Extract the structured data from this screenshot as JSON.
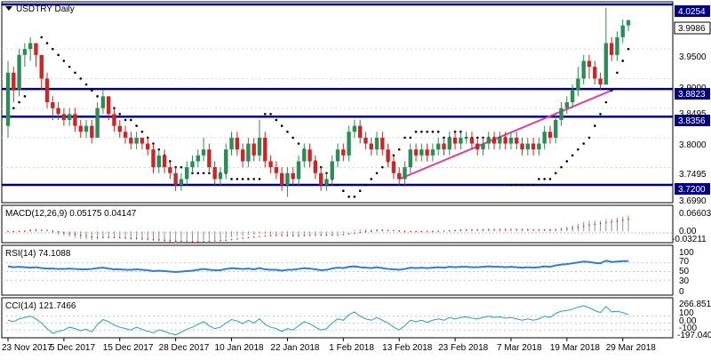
{
  "chart_data": [
    {
      "type": "candlestick",
      "title": "USDTRY Daily",
      "pane": "main",
      "ylim": [
        3.69,
        4.03
      ],
      "price_ticks": [
        "3.9500",
        "3.9000",
        "3.8495",
        "3.8000",
        "3.7495",
        "3.6990"
      ],
      "horizontal_levels": [
        {
          "label": "4.0254",
          "value": 4.0254
        },
        {
          "label": "3.8823",
          "value": 3.8823
        },
        {
          "label": "3.8356",
          "value": 3.8356
        },
        {
          "label": "3.7200",
          "value": 3.72
        }
      ],
      "last_price": {
        "label": "3.9986",
        "value": 3.9986
      },
      "trendline": {
        "from": {
          "index": 70,
          "value": 3.73
        },
        "to": {
          "index": 108,
          "value": 3.88
        },
        "color": "#e040a0"
      },
      "colors": {
        "up": "#2e8b57",
        "down": "#c62828",
        "level_line": "#000080",
        "parabolic_sar": "#000000"
      },
      "candles": [
        [
          3.82,
          3.91,
          3.93,
          3.8
        ],
        [
          3.91,
          3.88,
          3.92,
          3.86
        ],
        [
          3.88,
          3.94,
          3.95,
          3.87
        ],
        [
          3.94,
          3.95,
          3.96,
          3.92
        ],
        [
          3.95,
          3.96,
          3.97,
          3.93
        ],
        [
          3.96,
          3.94,
          3.96,
          3.92
        ],
        [
          3.94,
          3.9,
          3.94,
          3.88
        ],
        [
          3.9,
          3.86,
          3.91,
          3.85
        ],
        [
          3.86,
          3.85,
          3.87,
          3.83
        ],
        [
          3.85,
          3.84,
          3.86,
          3.83
        ],
        [
          3.84,
          3.83,
          3.85,
          3.82
        ],
        [
          3.83,
          3.84,
          3.85,
          3.82
        ],
        [
          3.84,
          3.82,
          3.85,
          3.81
        ],
        [
          3.82,
          3.81,
          3.83,
          3.8
        ],
        [
          3.81,
          3.82,
          3.83,
          3.8
        ],
        [
          3.82,
          3.8,
          3.83,
          3.79
        ],
        [
          3.8,
          3.85,
          3.86,
          3.8
        ],
        [
          3.85,
          3.87,
          3.88,
          3.84
        ],
        [
          3.87,
          3.84,
          3.87,
          3.83
        ],
        [
          3.84,
          3.82,
          3.85,
          3.81
        ],
        [
          3.82,
          3.81,
          3.83,
          3.8
        ],
        [
          3.81,
          3.8,
          3.82,
          3.79
        ],
        [
          3.8,
          3.79,
          3.81,
          3.78
        ],
        [
          3.79,
          3.8,
          3.81,
          3.78
        ],
        [
          3.8,
          3.79,
          3.8,
          3.78
        ],
        [
          3.79,
          3.78,
          3.8,
          3.77
        ],
        [
          3.78,
          3.75,
          3.79,
          3.74
        ],
        [
          3.75,
          3.77,
          3.78,
          3.74
        ],
        [
          3.77,
          3.75,
          3.78,
          3.74
        ],
        [
          3.75,
          3.74,
          3.76,
          3.73
        ],
        [
          3.74,
          3.72,
          3.75,
          3.71
        ],
        [
          3.72,
          3.73,
          3.74,
          3.71
        ],
        [
          3.73,
          3.75,
          3.76,
          3.72
        ],
        [
          3.75,
          3.76,
          3.77,
          3.74
        ],
        [
          3.76,
          3.77,
          3.78,
          3.75
        ],
        [
          3.77,
          3.78,
          3.8,
          3.76
        ],
        [
          3.78,
          3.75,
          3.79,
          3.74
        ],
        [
          3.75,
          3.73,
          3.76,
          3.72
        ],
        [
          3.73,
          3.74,
          3.75,
          3.72
        ],
        [
          3.74,
          3.78,
          3.79,
          3.73
        ],
        [
          3.78,
          3.8,
          3.81,
          3.77
        ],
        [
          3.8,
          3.78,
          3.81,
          3.77
        ],
        [
          3.78,
          3.76,
          3.79,
          3.75
        ],
        [
          3.76,
          3.79,
          3.8,
          3.75
        ],
        [
          3.79,
          3.77,
          3.8,
          3.76
        ],
        [
          3.77,
          3.8,
          3.83,
          3.76
        ],
        [
          3.8,
          3.76,
          3.81,
          3.75
        ],
        [
          3.76,
          3.75,
          3.77,
          3.74
        ],
        [
          3.75,
          3.74,
          3.76,
          3.73
        ],
        [
          3.74,
          3.72,
          3.75,
          3.71
        ],
        [
          3.72,
          3.74,
          3.75,
          3.7
        ],
        [
          3.74,
          3.73,
          3.75,
          3.72
        ],
        [
          3.73,
          3.76,
          3.77,
          3.72
        ],
        [
          3.76,
          3.78,
          3.79,
          3.75
        ],
        [
          3.78,
          3.76,
          3.79,
          3.75
        ],
        [
          3.76,
          3.74,
          3.77,
          3.73
        ],
        [
          3.74,
          3.72,
          3.75,
          3.71
        ],
        [
          3.72,
          3.73,
          3.74,
          3.71
        ],
        [
          3.73,
          3.76,
          3.77,
          3.72
        ],
        [
          3.76,
          3.78,
          3.79,
          3.75
        ],
        [
          3.78,
          3.77,
          3.79,
          3.76
        ],
        [
          3.77,
          3.81,
          3.82,
          3.76
        ],
        [
          3.81,
          3.82,
          3.83,
          3.8
        ],
        [
          3.82,
          3.8,
          3.83,
          3.79
        ],
        [
          3.8,
          3.79,
          3.81,
          3.78
        ],
        [
          3.79,
          3.78,
          3.8,
          3.77
        ],
        [
          3.78,
          3.8,
          3.81,
          3.77
        ],
        [
          3.8,
          3.78,
          3.81,
          3.77
        ],
        [
          3.78,
          3.76,
          3.79,
          3.75
        ],
        [
          3.76,
          3.74,
          3.77,
          3.73
        ],
        [
          3.74,
          3.73,
          3.75,
          3.72
        ],
        [
          3.73,
          3.75,
          3.76,
          3.72
        ],
        [
          3.75,
          3.78,
          3.79,
          3.74
        ],
        [
          3.78,
          3.77,
          3.79,
          3.76
        ],
        [
          3.77,
          3.78,
          3.79,
          3.76
        ],
        [
          3.78,
          3.77,
          3.79,
          3.76
        ],
        [
          3.77,
          3.78,
          3.79,
          3.76
        ],
        [
          3.78,
          3.79,
          3.8,
          3.77
        ],
        [
          3.79,
          3.78,
          3.8,
          3.77
        ],
        [
          3.78,
          3.8,
          3.81,
          3.77
        ],
        [
          3.8,
          3.79,
          3.81,
          3.78
        ],
        [
          3.79,
          3.8,
          3.81,
          3.78
        ],
        [
          3.8,
          3.8,
          3.81,
          3.79
        ],
        [
          3.8,
          3.79,
          3.81,
          3.78
        ],
        [
          3.79,
          3.78,
          3.8,
          3.77
        ],
        [
          3.78,
          3.79,
          3.8,
          3.77
        ],
        [
          3.79,
          3.8,
          3.81,
          3.78
        ],
        [
          3.8,
          3.79,
          3.81,
          3.78
        ],
        [
          3.79,
          3.8,
          3.81,
          3.78
        ],
        [
          3.8,
          3.79,
          3.81,
          3.78
        ],
        [
          3.79,
          3.8,
          3.81,
          3.78
        ],
        [
          3.8,
          3.79,
          3.81,
          3.78
        ],
        [
          3.79,
          3.78,
          3.8,
          3.77
        ],
        [
          3.78,
          3.79,
          3.8,
          3.77
        ],
        [
          3.79,
          3.78,
          3.8,
          3.77
        ],
        [
          3.78,
          3.79,
          3.8,
          3.77
        ],
        [
          3.79,
          3.81,
          3.82,
          3.78
        ],
        [
          3.81,
          3.8,
          3.82,
          3.79
        ],
        [
          3.8,
          3.83,
          3.84,
          3.79
        ],
        [
          3.83,
          3.85,
          3.86,
          3.82
        ],
        [
          3.85,
          3.86,
          3.87,
          3.84
        ],
        [
          3.86,
          3.88,
          3.89,
          3.85
        ],
        [
          3.88,
          3.9,
          3.92,
          3.87
        ],
        [
          3.9,
          3.93,
          3.94,
          3.89
        ],
        [
          3.93,
          3.92,
          3.94,
          3.9
        ],
        [
          3.92,
          3.9,
          3.93,
          3.89
        ],
        [
          3.9,
          3.89,
          3.91,
          3.88
        ],
        [
          3.89,
          3.96,
          4.02,
          3.89
        ],
        [
          3.96,
          3.94,
          3.97,
          3.93
        ],
        [
          3.94,
          3.97,
          3.98,
          3.93
        ],
        [
          3.97,
          3.99,
          4.0,
          3.96
        ],
        [
          3.99,
          3.9986,
          4.0,
          3.98
        ]
      ],
      "parabolic_sar": [
        3.84,
        3.85,
        3.86,
        3.87,
        null,
        null,
        3.97,
        3.96,
        3.95,
        3.94,
        3.93,
        3.92,
        3.91,
        3.9,
        3.89,
        3.88,
        3.87,
        3.86,
        3.86,
        3.85,
        3.84,
        3.83,
        3.83,
        3.82,
        3.81,
        3.8,
        3.79,
        3.78,
        3.77,
        3.76,
        3.75,
        3.75,
        3.74,
        3.74,
        3.74,
        3.74,
        3.74,
        3.74,
        3.74,
        3.74,
        3.73,
        3.73,
        3.73,
        3.73,
        3.73,
        3.73,
        3.84,
        3.84,
        3.83,
        3.82,
        3.81,
        3.8,
        3.79,
        3.78,
        3.77,
        3.76,
        3.75,
        3.74,
        3.73,
        3.72,
        3.71,
        3.7,
        3.7,
        3.71,
        3.72,
        3.73,
        3.74,
        3.75,
        3.76,
        3.77,
        3.78,
        3.8,
        3.8,
        3.81,
        3.81,
        3.81,
        3.81,
        3.81,
        3.8,
        3.8,
        3.81,
        3.81,
        3.8,
        3.8,
        3.8,
        3.8,
        3.8,
        3.8,
        3.8,
        3.8,
        3.72,
        3.72,
        3.72,
        3.72,
        3.72,
        3.73,
        3.73,
        3.73,
        3.74,
        3.75,
        3.76,
        3.77,
        3.78,
        3.79,
        3.8,
        3.82,
        3.84,
        3.86,
        3.88,
        3.91,
        3.93,
        3.95
      ]
    },
    {
      "type": "histogram",
      "pane": "macd",
      "title": "MACD(12,26,9) 0.05175 0.04147",
      "ylim": [
        -0.032,
        0.066
      ],
      "tick_labels": [
        "0.06603",
        "0.00",
        "-0.03211"
      ]
    },
    {
      "type": "line",
      "pane": "rsi",
      "title": "RSI(14) 74.1088",
      "ylim": [
        0,
        100
      ],
      "tick_labels": [
        "100",
        "70",
        "50",
        "30",
        "0"
      ],
      "line_color": "#2f7fd0",
      "values": [
        62,
        60,
        61,
        60,
        59,
        60,
        58,
        57,
        57,
        56,
        56,
        57,
        56,
        55,
        55,
        56,
        58,
        59,
        57,
        55,
        55,
        54,
        54,
        55,
        54,
        53,
        51,
        52,
        51,
        50,
        49,
        50,
        51,
        52,
        54,
        56,
        54,
        53,
        53,
        56,
        58,
        57,
        56,
        57,
        55,
        58,
        55,
        54,
        54,
        52,
        54,
        54,
        56,
        58,
        57,
        55,
        53,
        54,
        57,
        59,
        58,
        61,
        62,
        60,
        59,
        58,
        60,
        58,
        56,
        55,
        54,
        56,
        59,
        58,
        59,
        58,
        59,
        60,
        59,
        61,
        60,
        61,
        61,
        60,
        60,
        61,
        62,
        61,
        61,
        60,
        61,
        60,
        59,
        60,
        59,
        60,
        62,
        61,
        64,
        66,
        67,
        69,
        71,
        73,
        72,
        70,
        69,
        75,
        72,
        73,
        74,
        74.1
      ]
    },
    {
      "type": "line",
      "pane": "cci",
      "title": "CCI(14) 121.7466",
      "ylim": [
        -200,
        300
      ],
      "tick_labels": [
        "266.8515",
        "100",
        "0.00",
        "-100",
        "-197.040"
      ],
      "line_color": "#2aa3a3",
      "values": [
        40,
        20,
        60,
        80,
        100,
        60,
        0,
        -80,
        -150,
        -120,
        -100,
        -60,
        -80,
        -110,
        -90,
        -130,
        -20,
        50,
        20,
        -30,
        -60,
        -80,
        -100,
        -60,
        -90,
        -120,
        -140,
        -100,
        -120,
        -150,
        -170,
        -130,
        -90,
        -60,
        -20,
        20,
        -40,
        -80,
        -60,
        0,
        50,
        30,
        -10,
        40,
        0,
        60,
        -20,
        -60,
        -80,
        -120,
        -80,
        -100,
        -40,
        20,
        -10,
        -60,
        -100,
        -80,
        0,
        60,
        40,
        120,
        160,
        100,
        60,
        40,
        80,
        40,
        0,
        -60,
        -100,
        -40,
        40,
        20,
        40,
        10,
        40,
        60,
        40,
        80,
        60,
        80,
        90,
        70,
        60,
        80,
        100,
        80,
        90,
        70,
        80,
        60,
        40,
        60,
        40,
        60,
        100,
        80,
        140,
        170,
        180,
        200,
        230,
        250,
        220,
        180,
        150,
        240,
        160,
        170,
        150,
        121.7
      ]
    }
  ],
  "x_axis": {
    "tick_labels": [
      "23 Nov 2017",
      "5 Dec 2017",
      "15 Dec 2017",
      "28 Dec 2017",
      "10 Jan 2018",
      "22 Jan 2018",
      "1 Feb 2018",
      "13 Feb 2018",
      "23 Feb 2018",
      "7 Mar 2018",
      "19 Mar 2018",
      "29 Mar 2018"
    ],
    "tick_indices": [
      0,
      10,
      20,
      30,
      40,
      50,
      60,
      70,
      80,
      90,
      100,
      110
    ]
  }
}
